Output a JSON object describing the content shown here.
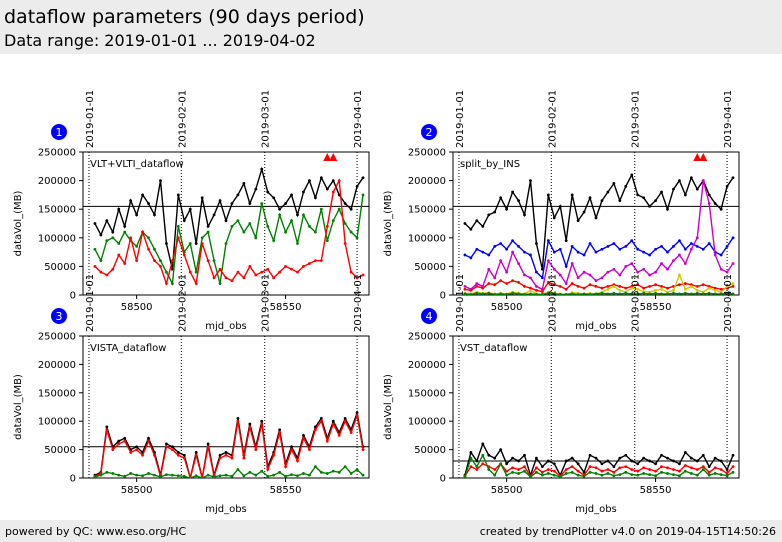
{
  "header": {
    "title": "dataflow parameters (90 days period)",
    "subtitle": "Data range: 2019-01-01 ... 2019-04-02"
  },
  "footer": {
    "left": "powered by QC: www.eso.org/HC",
    "right": "created by trendPlotter v4.0 on 2019-04-15T14:50:26"
  },
  "colors": {
    "black": "#000000",
    "green": "#008000",
    "red": "#ff0000",
    "blue": "#0000ff",
    "magenta": "#cc00cc",
    "yellow": "#d4c400",
    "badge": "#0000ff"
  },
  "chart_data": [
    {
      "type": "line",
      "number": "1",
      "panel_label": "VLT+VLTI_dataflow",
      "xlabel": "mjd_obs",
      "ylabel": "dataVol_(MB)",
      "xlim": [
        58482,
        58578
      ],
      "ylim": [
        0,
        250000
      ],
      "xticks": [
        58500,
        58550
      ],
      "yticks": [
        0,
        50000,
        100000,
        150000,
        200000,
        250000
      ],
      "date_markers": [
        {
          "label": "2019-01-01",
          "mjd": 58484
        },
        {
          "label": "2019-02-01",
          "mjd": 58515
        },
        {
          "label": "2019-03-01",
          "mjd": 58543
        },
        {
          "label": "2019-04-01",
          "mjd": 58574
        }
      ],
      "reference_line": 155000,
      "overflow_markers_mjd": [
        58564,
        58566
      ],
      "series": [
        {
          "color": "black",
          "x_start": 58486,
          "x_step": 2,
          "values": [
            125000,
            105000,
            130000,
            110000,
            150000,
            120000,
            165000,
            140000,
            175000,
            160000,
            140000,
            200000,
            90000,
            45000,
            175000,
            130000,
            150000,
            90000,
            170000,
            120000,
            140000,
            165000,
            130000,
            160000,
            175000,
            195000,
            160000,
            185000,
            220000,
            180000,
            170000,
            150000,
            160000,
            175000,
            140000,
            180000,
            200000,
            170000,
            205000,
            185000,
            200000,
            175000,
            160000,
            150000,
            190000,
            205000
          ]
        },
        {
          "color": "green",
          "x_start": 58486,
          "x_step": 2,
          "values": [
            80000,
            60000,
            95000,
            100000,
            90000,
            110000,
            95000,
            85000,
            110000,
            100000,
            80000,
            60000,
            40000,
            20000,
            120000,
            75000,
            90000,
            40000,
            100000,
            110000,
            60000,
            20000,
            90000,
            120000,
            130000,
            110000,
            125000,
            100000,
            160000,
            120000,
            95000,
            140000,
            110000,
            130000,
            90000,
            140000,
            120000,
            110000,
            150000,
            95000,
            130000,
            150000,
            125000,
            110000,
            100000,
            175000
          ]
        },
        {
          "color": "red",
          "x_start": 58486,
          "x_step": 2,
          "values": [
            50000,
            40000,
            35000,
            45000,
            70000,
            55000,
            100000,
            60000,
            110000,
            80000,
            60000,
            50000,
            20000,
            60000,
            100000,
            70000,
            40000,
            20000,
            90000,
            60000,
            30000,
            45000,
            30000,
            25000,
            40000,
            30000,
            50000,
            35000,
            40000,
            45000,
            30000,
            40000,
            50000,
            45000,
            40000,
            50000,
            55000,
            60000,
            60000,
            120000,
            180000,
            200000,
            90000,
            40000,
            30000,
            35000
          ]
        }
      ]
    },
    {
      "type": "line",
      "number": "2",
      "panel_label": "split_by_INS",
      "xlabel": "mjd_obs",
      "ylabel": "dataVol_(MB)",
      "xlim": [
        58482,
        58578
      ],
      "ylim": [
        0,
        250000
      ],
      "xticks": [
        58500,
        58550
      ],
      "yticks": [
        0,
        50000,
        100000,
        150000,
        200000,
        250000
      ],
      "date_markers": [
        {
          "label": "2019-01-01",
          "mjd": 58484
        },
        {
          "label": "2019-02-01",
          "mjd": 58515
        },
        {
          "label": "2019-03-01",
          "mjd": 58543
        },
        {
          "label": "2019-04-01",
          "mjd": 58574
        }
      ],
      "reference_line": 155000,
      "overflow_markers_mjd": [
        58564,
        58566
      ],
      "series": [
        {
          "color": "black",
          "x_start": 58486,
          "x_step": 2,
          "values": [
            125000,
            115000,
            130000,
            120000,
            140000,
            145000,
            170000,
            150000,
            180000,
            165000,
            140000,
            200000,
            90000,
            45000,
            175000,
            135000,
            155000,
            95000,
            175000,
            130000,
            145000,
            170000,
            135000,
            165000,
            180000,
            195000,
            165000,
            190000,
            210000,
            175000,
            170000,
            155000,
            165000,
            180000,
            150000,
            185000,
            200000,
            175000,
            205000,
            185000,
            200000,
            175000,
            160000,
            150000,
            190000,
            205000
          ]
        },
        {
          "color": "blue",
          "x_start": 58486,
          "x_step": 2,
          "values": [
            70000,
            65000,
            80000,
            75000,
            70000,
            85000,
            90000,
            80000,
            95000,
            85000,
            75000,
            70000,
            40000,
            30000,
            95000,
            75000,
            80000,
            50000,
            85000,
            75000,
            70000,
            90000,
            75000,
            80000,
            85000,
            90000,
            80000,
            85000,
            95000,
            80000,
            75000,
            70000,
            80000,
            85000,
            75000,
            85000,
            95000,
            80000,
            90000,
            85000,
            80000,
            90000,
            75000,
            70000,
            85000,
            100000
          ]
        },
        {
          "color": "magenta",
          "x_start": 58486,
          "x_step": 2,
          "values": [
            15000,
            10000,
            20000,
            15000,
            45000,
            30000,
            60000,
            40000,
            75000,
            55000,
            35000,
            30000,
            15000,
            10000,
            60000,
            45000,
            35000,
            20000,
            55000,
            30000,
            40000,
            35000,
            25000,
            30000,
            40000,
            45000,
            35000,
            50000,
            55000,
            40000,
            45000,
            35000,
            40000,
            55000,
            45000,
            60000,
            70000,
            55000,
            80000,
            100000,
            200000,
            160000,
            70000,
            45000,
            40000,
            55000
          ]
        },
        {
          "color": "red",
          "x_start": 58486,
          "x_step": 2,
          "values": [
            10000,
            8000,
            15000,
            12000,
            20000,
            18000,
            25000,
            20000,
            25000,
            22000,
            15000,
            12000,
            8000,
            6000,
            22000,
            18000,
            15000,
            10000,
            20000,
            15000,
            12000,
            18000,
            15000,
            12000,
            15000,
            18000,
            15000,
            12000,
            15000,
            18000,
            12000,
            15000,
            18000,
            15000,
            12000,
            15000,
            18000,
            20000,
            18000,
            15000,
            18000,
            15000,
            12000,
            10000,
            12000,
            15000
          ]
        },
        {
          "color": "yellow",
          "x_start": 58486,
          "x_step": 2,
          "values": [
            3000,
            2000,
            5000,
            3000,
            4000,
            2000,
            3000,
            2000,
            5000,
            3000,
            2000,
            8000,
            2000,
            1000,
            5000,
            3000,
            2000,
            1000,
            4000,
            3000,
            2000,
            3000,
            2000,
            5000,
            10000,
            15000,
            8000,
            5000,
            12000,
            10000,
            6000,
            5000,
            8000,
            10000,
            5000,
            8000,
            35000,
            10000,
            15000,
            8000,
            5000,
            12000,
            8000,
            5000,
            15000,
            20000
          ]
        },
        {
          "color": "green",
          "x_start": 58486,
          "x_step": 2,
          "values": [
            2000,
            1000,
            3000,
            2000,
            3000,
            1000,
            2000,
            1000,
            3000,
            2000,
            1000,
            2000,
            1000,
            1000,
            3000,
            2000,
            1000,
            1000,
            2000,
            1000,
            2000,
            1000,
            2000,
            3000,
            2000,
            3000,
            2000,
            3000,
            2000,
            2000,
            3000,
            2000,
            3000,
            2000,
            2000,
            3000,
            2000,
            3000,
            2000,
            3000,
            2000,
            3000,
            2000,
            2000,
            3000,
            2000
          ]
        }
      ]
    },
    {
      "type": "line",
      "number": "3",
      "panel_label": "VISTA_dataflow",
      "xlabel": "mjd_obs",
      "ylabel": "dataVol_(MB)",
      "xlim": [
        58482,
        58578
      ],
      "ylim": [
        0,
        250000
      ],
      "xticks": [
        58500,
        58550
      ],
      "yticks": [
        0,
        50000,
        100000,
        150000,
        200000,
        250000
      ],
      "date_markers": [
        {
          "label": "2019-01-01",
          "mjd": 58484
        },
        {
          "label": "2019-02-01",
          "mjd": 58515
        },
        {
          "label": "2019-03-01",
          "mjd": 58543
        },
        {
          "label": "2019-04-01",
          "mjd": 58574
        }
      ],
      "reference_line": 55000,
      "overflow_markers_mjd": [],
      "series": [
        {
          "color": "black",
          "x_start": 58486,
          "x_step": 2,
          "values": [
            5000,
            10000,
            90000,
            55000,
            65000,
            70000,
            50000,
            55000,
            45000,
            70000,
            45000,
            5000,
            60000,
            55000,
            45000,
            40000,
            0,
            45000,
            0,
            60000,
            5000,
            40000,
            45000,
            40000,
            105000,
            40000,
            95000,
            55000,
            100000,
            20000,
            45000,
            85000,
            25000,
            55000,
            35000,
            75000,
            55000,
            90000,
            105000,
            70000,
            100000,
            80000,
            105000,
            85000,
            115000,
            55000
          ]
        },
        {
          "color": "red",
          "x_start": 58486,
          "x_step": 2,
          "values": [
            3000,
            8000,
            85000,
            50000,
            60000,
            65000,
            45000,
            50000,
            40000,
            65000,
            40000,
            3000,
            55000,
            50000,
            40000,
            35000,
            0,
            40000,
            0,
            55000,
            3000,
            35000,
            40000,
            35000,
            100000,
            35000,
            90000,
            50000,
            95000,
            15000,
            40000,
            80000,
            20000,
            50000,
            30000,
            70000,
            50000,
            85000,
            100000,
            65000,
            95000,
            75000,
            100000,
            80000,
            110000,
            50000
          ]
        },
        {
          "color": "green",
          "x_start": 58486,
          "x_step": 2,
          "values": [
            2000,
            5000,
            10000,
            8000,
            5000,
            3000,
            8000,
            5000,
            4000,
            8000,
            5000,
            2000,
            6000,
            5000,
            4000,
            3000,
            0,
            4000,
            0,
            5000,
            2000,
            4000,
            5000,
            3000,
            15000,
            4000,
            10000,
            5000,
            12000,
            3000,
            5000,
            10000,
            3000,
            6000,
            4000,
            8000,
            5000,
            20000,
            10000,
            8000,
            12000,
            10000,
            20000,
            8000,
            15000,
            5000
          ]
        }
      ]
    },
    {
      "type": "line",
      "number": "4",
      "panel_label": "VST_dataflow",
      "xlabel": "mjd_obs",
      "ylabel": "dataVol_(MB)",
      "xlim": [
        58482,
        58578
      ],
      "ylim": [
        0,
        250000
      ],
      "xticks": [
        58500,
        58550
      ],
      "yticks": [
        0,
        50000,
        100000,
        150000,
        200000,
        250000
      ],
      "date_markers": [
        {
          "label": "2019-01-01",
          "mjd": 58484
        },
        {
          "label": "2019-02-01",
          "mjd": 58515
        },
        {
          "label": "2019-03-01",
          "mjd": 58543
        },
        {
          "label": "2019-04-01",
          "mjd": 58574
        }
      ],
      "reference_line": 30000,
      "overflow_markers_mjd": [],
      "series": [
        {
          "color": "black",
          "x_start": 58486,
          "x_step": 2,
          "values": [
            5000,
            45000,
            30000,
            60000,
            40000,
            35000,
            50000,
            25000,
            35000,
            30000,
            40000,
            5000,
            35000,
            20000,
            30000,
            25000,
            5000,
            30000,
            35000,
            25000,
            10000,
            40000,
            35000,
            25000,
            30000,
            20000,
            35000,
            40000,
            30000,
            25000,
            35000,
            30000,
            25000,
            40000,
            35000,
            30000,
            25000,
            45000,
            35000,
            30000,
            40000,
            20000,
            35000,
            30000,
            15000,
            40000
          ]
        },
        {
          "color": "red",
          "x_start": 58486,
          "x_step": 2,
          "values": [
            3000,
            20000,
            15000,
            25000,
            20000,
            15000,
            25000,
            12000,
            18000,
            15000,
            20000,
            3000,
            18000,
            10000,
            15000,
            12000,
            3000,
            15000,
            20000,
            12000,
            5000,
            20000,
            18000,
            12000,
            15000,
            10000,
            18000,
            20000,
            15000,
            12000,
            18000,
            15000,
            12000,
            20000,
            18000,
            15000,
            12000,
            22000,
            18000,
            15000,
            20000,
            10000,
            18000,
            15000,
            8000,
            20000
          ]
        },
        {
          "color": "green",
          "x_start": 58486,
          "x_step": 2,
          "values": [
            2000,
            35000,
            20000,
            40000,
            15000,
            5000,
            25000,
            5000,
            10000,
            8000,
            12000,
            2000,
            10000,
            5000,
            8000,
            5000,
            2000,
            8000,
            10000,
            5000,
            3000,
            10000,
            8000,
            5000,
            8000,
            4000,
            6000,
            10000,
            6000,
            5000,
            8000,
            6000,
            4000,
            10000,
            8000,
            6000,
            4000,
            12000,
            8000,
            5000,
            15000,
            5000,
            8000,
            6000,
            4000,
            10000
          ]
        }
      ]
    }
  ]
}
